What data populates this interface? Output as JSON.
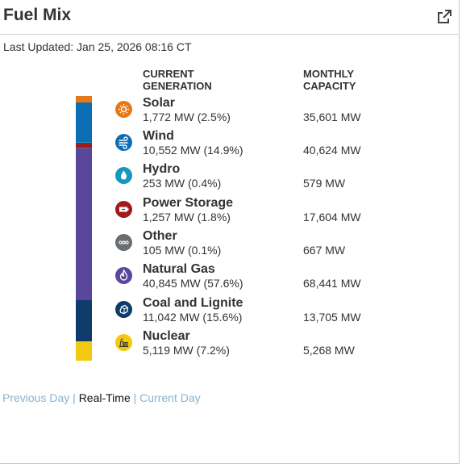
{
  "widget": {
    "title": "Fuel Mix",
    "popout_icon": "external-link-icon",
    "last_updated": "Last Updated: Jan 25, 2026 08:16 CT"
  },
  "columns": {
    "current_line1": "CURRENT",
    "current_line2": "GENERATION",
    "capacity_line1": "MONTHLY",
    "capacity_line2": "CAPACITY"
  },
  "fuels": [
    {
      "name": "Solar",
      "generation": "1,772 MW (2.5%)",
      "capacity": "35,601 MW",
      "share": 2.5,
      "color": "#e67817",
      "icon": "sun-icon"
    },
    {
      "name": "Wind",
      "generation": "10,552 MW (14.9%)",
      "capacity": "40,624 MW",
      "share": 14.9,
      "color": "#0d6eb5",
      "icon": "wind-icon"
    },
    {
      "name": "Hydro",
      "generation": "253 MW (0.4%)",
      "capacity": "579 MW",
      "share": 0.4,
      "color": "#1797c0",
      "icon": "water-drop-icon"
    },
    {
      "name": "Power Storage",
      "generation": "1,257 MW (1.8%)",
      "capacity": "17,604 MW",
      "share": 1.8,
      "color": "#a11a1e",
      "icon": "battery-icon"
    },
    {
      "name": "Other",
      "generation": "105 MW (0.1%)",
      "capacity": "667 MW",
      "share": 0.1,
      "color": "#6a6e73",
      "icon": "dots-icon"
    },
    {
      "name": "Natural Gas",
      "generation": "40,845 MW (57.6%)",
      "capacity": "68,441 MW",
      "share": 57.6,
      "color": "#5a479c",
      "icon": "flame-icon"
    },
    {
      "name": "Coal and Lignite",
      "generation": "11,042 MW (15.6%)",
      "capacity": "13,705 MW",
      "share": 15.6,
      "color": "#0d3c6b",
      "icon": "coal-icon"
    },
    {
      "name": "Nuclear",
      "generation": "5,119 MW (7.2%)",
      "capacity": "5,268 MW",
      "share": 7.2,
      "color": "#f2c90f",
      "icon": "nuclear-plant-icon"
    }
  ],
  "footer": {
    "previous": "Previous Day",
    "separator": "|",
    "realtime": "Real-Time",
    "current": "Current Day"
  },
  "colors": {
    "link": "#8ab2cf",
    "text": "#333333"
  }
}
